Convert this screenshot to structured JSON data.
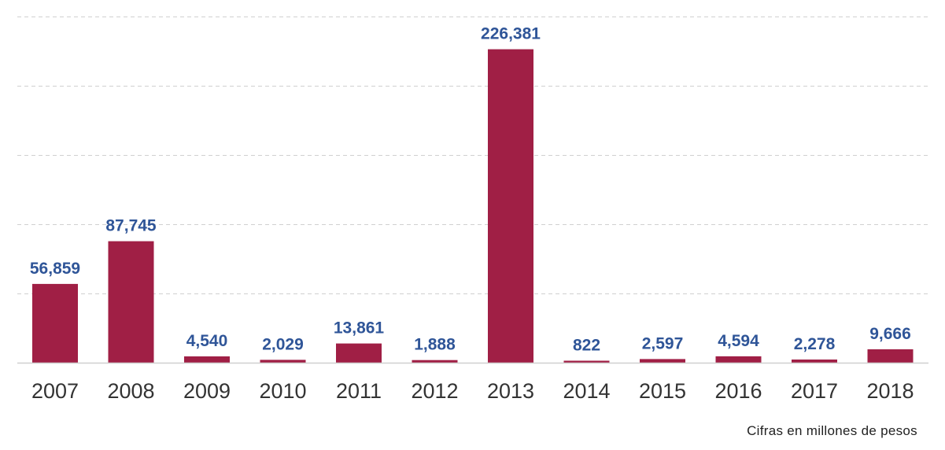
{
  "chart_data": {
    "type": "bar",
    "categories": [
      "2007",
      "2008",
      "2009",
      "2010",
      "2011",
      "2012",
      "2013",
      "2014",
      "2015",
      "2016",
      "2017",
      "2018"
    ],
    "values": [
      56859,
      87745,
      4540,
      2029,
      13861,
      1888,
      226381,
      822,
      2597,
      4594,
      2278,
      9666
    ],
    "value_labels": [
      "56,859",
      "87,745",
      "4,540",
      "2,029",
      "13,861",
      "1,888",
      "226,381",
      "822",
      "2,597",
      "4,594",
      "2,278",
      "9,666"
    ],
    "note": "Cifras en millones de pesos",
    "ylim": [
      0,
      250000
    ],
    "y_grid_step": 50000,
    "grid": true,
    "y_axis_labels_shown": false,
    "colors": {
      "bar": "#a01f45",
      "value_label": "#2f5598",
      "tick_label": "#333333",
      "grid": "#d0d0d0",
      "baseline": "#cfcfcf",
      "note": "#222222"
    }
  }
}
